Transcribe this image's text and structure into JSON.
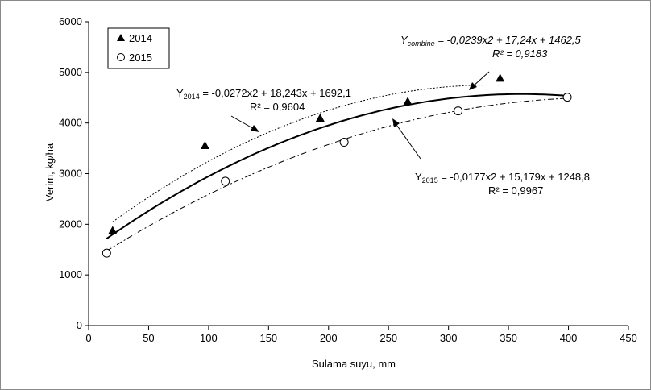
{
  "chart_data": {
    "type": "scatter",
    "xlabel": "Sulama suyu, mm",
    "ylabel": "Verim, kg/ha",
    "xlim": [
      0,
      450
    ],
    "ylim": [
      0,
      6000
    ],
    "x_ticks": [
      0,
      50,
      100,
      150,
      200,
      250,
      300,
      350,
      400,
      450
    ],
    "y_ticks": [
      0,
      1000,
      2000,
      3000,
      4000,
      5000,
      6000
    ],
    "grid": false,
    "legend_position": "top-left",
    "series": [
      {
        "name": "2014",
        "marker": "filled-triangle",
        "x": [
          20,
          97,
          193,
          266,
          343
        ],
        "y": [
          1870,
          3550,
          4090,
          4420,
          4880
        ]
      },
      {
        "name": "2015",
        "marker": "open-circle",
        "x": [
          15,
          114,
          213,
          308,
          399
        ],
        "y": [
          1430,
          2850,
          3620,
          4240,
          4510
        ]
      }
    ],
    "trendlines": [
      {
        "series": "2014",
        "style": "dotted",
        "coef": [
          -0.0272,
          18.243,
          1692.1
        ],
        "x_range": [
          20,
          343
        ],
        "equation_prefix": "Y",
        "equation_sub": "2014",
        "equation_rest": " = -0,0272x2 + 18,243x + 1692,1",
        "r2": "R² = 0,9604"
      },
      {
        "series": "2015",
        "style": "dash-dot",
        "coef": [
          -0.0177,
          15.179,
          1248.8
        ],
        "x_range": [
          15,
          399
        ],
        "equation_prefix": "Y",
        "equation_sub": "2015",
        "equation_rest": " = -0,0177x2 + 15,179x + 1248,8",
        "r2": "R² = 0,9967"
      },
      {
        "series": "combine",
        "style": "solid",
        "coef": [
          -0.0239,
          17.24,
          1462.5
        ],
        "x_range": [
          15,
          399
        ],
        "equation_prefix": "Y",
        "equation_sub": "combine",
        "equation_rest": " = -0,0239x2 + 17,24x + 1462,5",
        "r2": "R² = 0,9183"
      }
    ]
  }
}
